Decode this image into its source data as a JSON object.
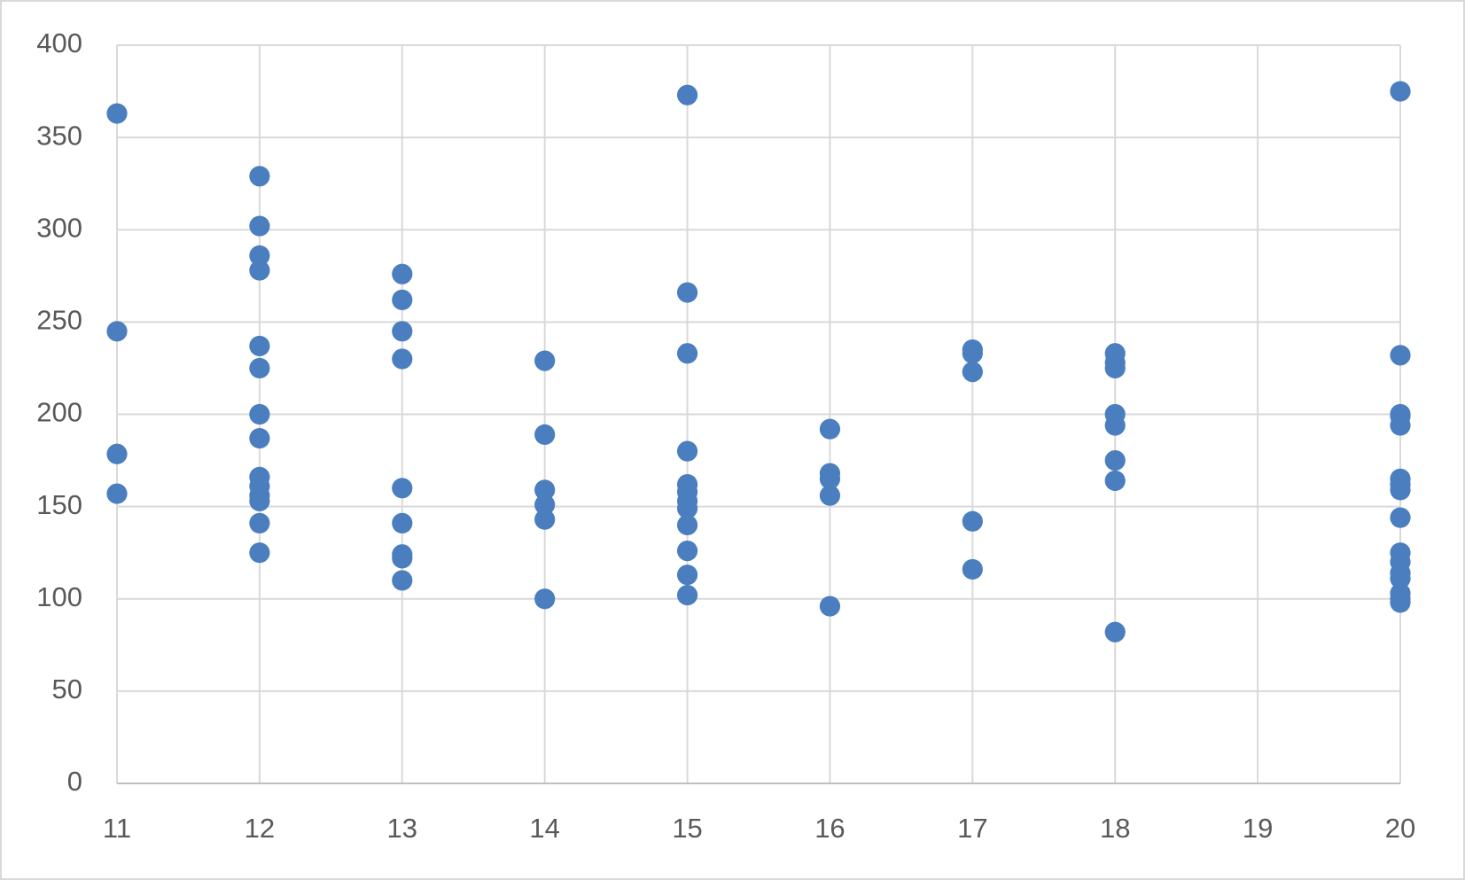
{
  "chart_data": {
    "type": "scatter",
    "x": [
      11,
      11,
      11,
      11,
      12,
      12,
      12,
      12,
      12,
      12,
      12,
      12,
      12,
      12,
      12,
      12,
      12,
      12,
      13,
      13,
      13,
      13,
      13,
      13,
      13,
      13,
      13,
      14,
      14,
      14,
      14,
      14,
      14,
      15,
      15,
      15,
      15,
      15,
      15,
      15,
      15,
      15,
      15,
      15,
      15,
      16,
      16,
      16,
      16,
      16,
      17,
      17,
      17,
      17,
      17,
      18,
      18,
      18,
      18,
      18,
      18,
      18,
      18,
      20,
      20,
      20,
      20,
      20,
      20,
      20,
      20,
      20,
      20,
      20,
      20,
      20,
      20,
      20,
      20
    ],
    "series": [
      {
        "color": "#4a7ebf",
        "values": [
          363,
          245,
          178.5,
          157,
          329,
          302,
          286,
          278,
          237,
          225,
          200,
          187,
          166,
          161,
          156,
          153,
          141,
          125,
          276,
          262,
          245,
          230,
          160,
          141,
          124,
          122,
          110,
          229,
          189,
          159,
          151,
          143,
          100,
          373,
          266,
          233,
          180,
          162,
          158,
          153,
          149,
          140,
          126,
          113,
          102,
          192,
          168,
          165,
          156,
          96,
          235,
          233,
          223,
          142,
          116,
          233,
          228,
          225,
          200,
          194,
          175,
          164,
          82,
          375,
          232,
          200,
          199,
          194,
          165,
          162,
          159,
          144,
          125,
          120,
          114,
          111,
          103,
          100,
          98
        ]
      }
    ],
    "xlim": [
      11,
      20
    ],
    "xticks": [
      11,
      12,
      13,
      14,
      15,
      16,
      17,
      18,
      19,
      20
    ],
    "ylim": [
      0,
      400
    ],
    "yticks": [
      0,
      50,
      100,
      150,
      200,
      250,
      300,
      350,
      400
    ],
    "grid": true
  }
}
